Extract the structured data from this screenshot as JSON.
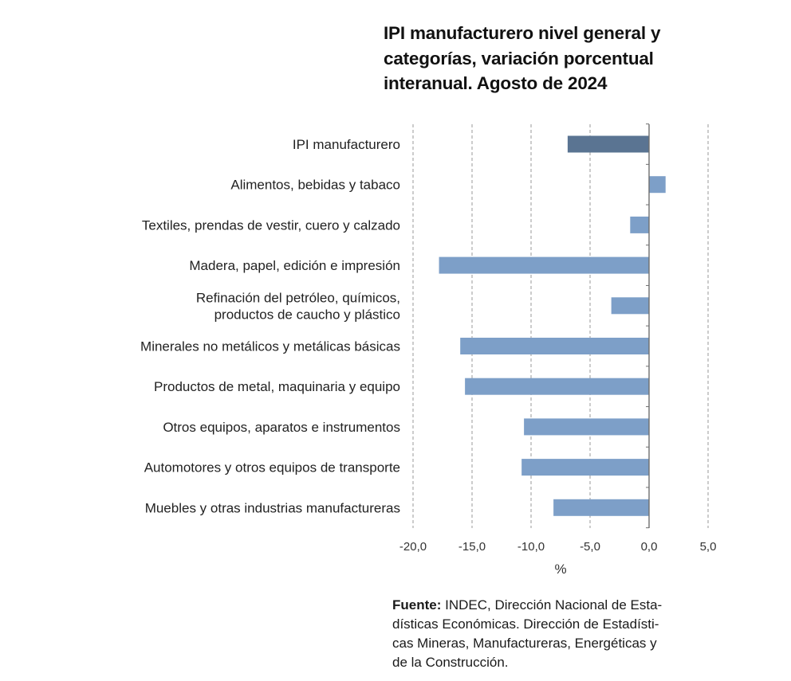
{
  "title_lines": [
    "IPI manufacturero nivel general y",
    "categorías, variación porcentual",
    "interanual. Agosto de 2024"
  ],
  "source": {
    "lead": "Fuente:",
    "lines": [
      " INDEC, Dirección Nacional de Esta-",
      "dísticas Económicas. Dirección de Estadísti-",
      "cas Mineras, Manufactureras, Energéticas y",
      "de la Construcción."
    ]
  },
  "colors": {
    "highlight_bar": "#5a7492",
    "bar": "#7d9fc8",
    "grid": "#9a9a9a"
  },
  "chart_data": {
    "type": "bar",
    "orientation": "horizontal",
    "categories": [
      [
        "IPI manufacturero"
      ],
      [
        "Alimentos, bebidas y tabaco"
      ],
      [
        "Textiles, prendas de vestir, cuero y calzado"
      ],
      [
        "Madera, papel, edición e impresión"
      ],
      [
        "Refinación del petróleo, químicos,",
        "productos de caucho y plástico"
      ],
      [
        "Minerales no metálicos y metálicas básicas"
      ],
      [
        "Productos de metal, maquinaria y equipo"
      ],
      [
        "Otros equipos, aparatos e instrumentos"
      ],
      [
        "Automotores y otros equipos de transporte"
      ],
      [
        "Muebles y otras industrias manufactureras"
      ]
    ],
    "values": [
      -6.9,
      1.4,
      -1.6,
      -17.8,
      -3.2,
      -16.0,
      -15.6,
      -10.6,
      -10.8,
      -8.1
    ],
    "highlight_index": 0,
    "xlim": [
      -20,
      5
    ],
    "xticks": [
      -20,
      -15,
      -10,
      -5,
      0,
      5
    ],
    "xtick_labels": [
      "-20,0",
      "-15,0",
      "-10,0",
      "-5,0",
      "0,0",
      "5,0"
    ],
    "xlabel": "%",
    "ylabel": "",
    "grid": "vertical-dashed",
    "legend": "none"
  }
}
